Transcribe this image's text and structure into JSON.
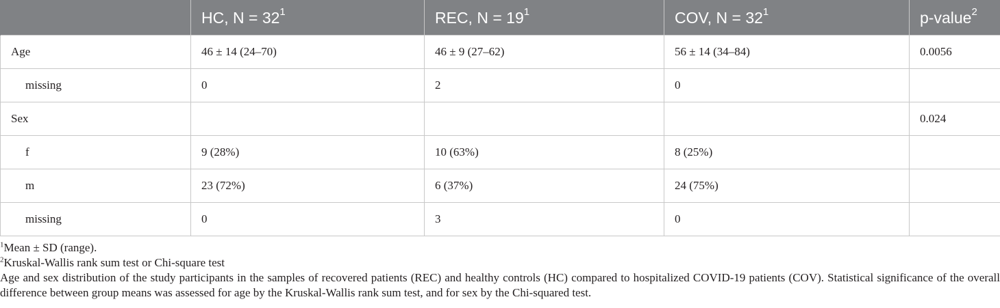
{
  "table": {
    "headers": [
      {
        "label": "",
        "sup": ""
      },
      {
        "label": "HC, N = 32",
        "sup": "1"
      },
      {
        "label": "REC, N = 19",
        "sup": "1"
      },
      {
        "label": "COV, N = 32",
        "sup": "1"
      },
      {
        "label": "p-value",
        "sup": "2"
      }
    ],
    "rows": [
      {
        "cells": [
          "Age",
          "46 ± 14 (24–70)",
          "46 ± 9 (27–62)",
          "56 ± 14 (34–84)",
          "0.0056"
        ]
      },
      {
        "cells": [
          "missing",
          "0",
          "2",
          "0",
          ""
        ]
      },
      {
        "cells": [
          "Sex",
          "",
          "",
          "",
          "0.024"
        ]
      },
      {
        "cells": [
          "f",
          "9 (28%)",
          "10 (63%)",
          "8 (25%)",
          ""
        ]
      },
      {
        "cells": [
          "m",
          "23 (72%)",
          "6 (37%)",
          "24 (75%)",
          ""
        ]
      },
      {
        "cells": [
          "missing",
          "0",
          "3",
          "0",
          ""
        ]
      }
    ]
  },
  "footnotes": [
    {
      "sup": "1",
      "text": "Mean ± SD (range)."
    },
    {
      "sup": "2",
      "text": "Kruskal-Wallis rank sum test or Chi-square test"
    }
  ],
  "caption": "Age and sex distribution of the study participants in the samples of recovered patients (REC) and healthy controls (HC) compared to hospitalized COVID-19 patients (COV). Statistical significance of the overall difference between group means was assessed for age by the Kruskal-Wallis rank sum test, and for sex by the Chi-squared test."
}
